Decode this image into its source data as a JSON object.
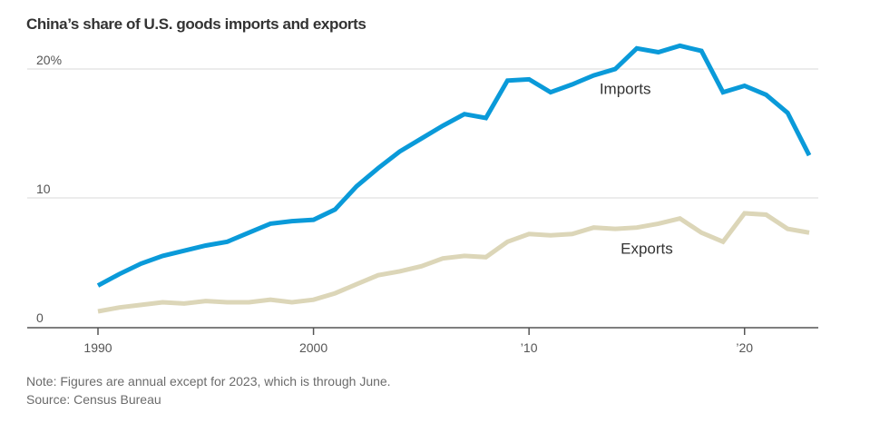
{
  "chart_data": {
    "type": "line",
    "title": "China’s share of U.S. goods imports and exports",
    "xlabel": "",
    "ylabel": "",
    "x": [
      1990,
      1991,
      1992,
      1993,
      1994,
      1995,
      1996,
      1997,
      1998,
      1999,
      2000,
      2001,
      2002,
      2003,
      2004,
      2005,
      2006,
      2007,
      2008,
      2009,
      2010,
      2011,
      2012,
      2013,
      2014,
      2015,
      2016,
      2017,
      2018,
      2019,
      2020,
      2021,
      2022,
      2023
    ],
    "series": [
      {
        "name": "Imports",
        "color": "#0a9ad9",
        "values": [
          3.2,
          4.1,
          4.9,
          5.5,
          5.9,
          6.3,
          6.6,
          7.3,
          8.0,
          8.2,
          8.3,
          9.1,
          10.9,
          12.3,
          13.6,
          14.6,
          15.6,
          16.5,
          16.2,
          19.1,
          19.2,
          18.2,
          18.8,
          19.5,
          20.0,
          21.6,
          21.3,
          21.8,
          21.4,
          18.2,
          18.7,
          18.0,
          16.6,
          13.3
        ]
      },
      {
        "name": "Exports",
        "color": "#dcd6b8",
        "values": [
          1.2,
          1.5,
          1.7,
          1.9,
          1.8,
          2.0,
          1.9,
          1.9,
          2.1,
          1.9,
          2.1,
          2.6,
          3.3,
          4.0,
          4.3,
          4.7,
          5.3,
          5.5,
          5.4,
          6.6,
          7.2,
          7.1,
          7.2,
          7.7,
          7.6,
          7.7,
          8.0,
          8.4,
          7.3,
          6.6,
          8.8,
          8.7,
          7.6,
          7.3
        ]
      }
    ],
    "xlim": [
      1990,
      2023
    ],
    "ylim": [
      0,
      20
    ],
    "y_ticks": [
      {
        "value": 0,
        "label": "0"
      },
      {
        "value": 10,
        "label": "10"
      },
      {
        "value": 20,
        "label": "20%"
      }
    ],
    "x_ticks": [
      {
        "value": 1990,
        "label": "1990"
      },
      {
        "value": 2000,
        "label": "2000"
      },
      {
        "value": 2010,
        "label": "’10"
      },
      {
        "value": 2020,
        "label": "’20"
      }
    ],
    "grid": true,
    "legend": "inline labels",
    "annotations": [
      {
        "text": "Imports",
        "series": "Imports",
        "x": 2014,
        "y": 18.5
      },
      {
        "text": "Exports",
        "series": "Exports",
        "x": 2015,
        "y": 6.1
      }
    ]
  },
  "footer": {
    "note": "Note: Figures are annual except for 2023, which is through June.",
    "source": "Source: Census Bureau"
  }
}
